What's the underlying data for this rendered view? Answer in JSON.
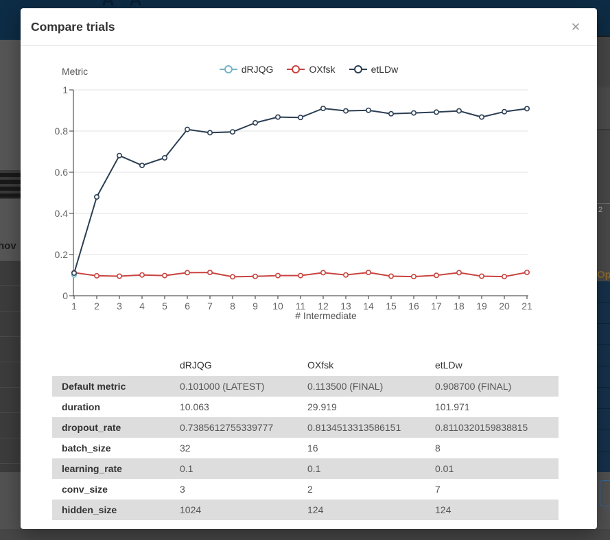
{
  "modal": {
    "title": "Compare trials"
  },
  "icons": {
    "close": "✕"
  },
  "colors": {
    "header_navy": "#0d2c45",
    "axis_line": "#333333",
    "grid_line": "#e0e0e0",
    "tick_text": "#666666",
    "axis_name_text": "#555555"
  },
  "chart_data": {
    "type": "line",
    "title": "",
    "xlabel": "# Intermediate",
    "ylabel": "Metric",
    "x": [
      1,
      2,
      3,
      4,
      5,
      6,
      7,
      8,
      9,
      10,
      11,
      12,
      13,
      14,
      15,
      16,
      17,
      18,
      19,
      20,
      21
    ],
    "ylim": [
      0,
      1
    ],
    "y_ticks": [
      1,
      0.8,
      0.6,
      0.4,
      0.2,
      0
    ],
    "grid": true,
    "legend_position": "top",
    "series": [
      {
        "name": "dRJQG",
        "color": "#74b5c4",
        "values": [
          0.101,
          null,
          null,
          null,
          null,
          null,
          null,
          null,
          null,
          null,
          null,
          null,
          null,
          null,
          null,
          null,
          null,
          null,
          null,
          null,
          null
        ]
      },
      {
        "name": "OXfsk",
        "color": "#c8433f",
        "values": [
          0.112,
          0.097,
          0.095,
          0.101,
          0.098,
          0.112,
          0.113,
          0.092,
          0.094,
          0.098,
          0.098,
          0.112,
          0.101,
          0.113,
          0.095,
          0.093,
          0.099,
          0.112,
          0.095,
          0.093,
          0.1135
        ]
      },
      {
        "name": "etLDw",
        "color": "#2b3e54",
        "values": [
          0.11,
          0.48,
          0.681,
          0.633,
          0.67,
          0.808,
          0.792,
          0.796,
          0.84,
          0.868,
          0.866,
          0.91,
          0.898,
          0.901,
          0.884,
          0.888,
          0.892,
          0.898,
          0.868,
          0.894,
          0.9087
        ]
      }
    ]
  },
  "table": {
    "series_columns": [
      "dRJQG",
      "OXfsk",
      "etLDw"
    ],
    "rows": [
      {
        "label": "Default metric",
        "values": [
          "0.101000 (LATEST)",
          "0.113500 (FINAL)",
          "0.908700 (FINAL)"
        ]
      },
      {
        "label": "duration",
        "values": [
          "10.063",
          "29.919",
          "101.971"
        ]
      },
      {
        "label": "dropout_rate",
        "values": [
          "0.7385612755339777",
          "0.8134513313586151",
          "0.8110320159838815"
        ]
      },
      {
        "label": "batch_size",
        "values": [
          "32",
          "16",
          "8"
        ]
      },
      {
        "label": "learning_rate",
        "values": [
          "0.1",
          "0.1",
          "0.01"
        ]
      },
      {
        "label": "conv_size",
        "values": [
          "3",
          "2",
          "7"
        ]
      },
      {
        "label": "hidden_size",
        "values": [
          "1024",
          "124",
          "124"
        ]
      }
    ]
  },
  "background": {
    "logo_fragment": "A A",
    "left_text_fragment": "hov",
    "right_row_number": "2",
    "right_header_fragment": "Op"
  }
}
